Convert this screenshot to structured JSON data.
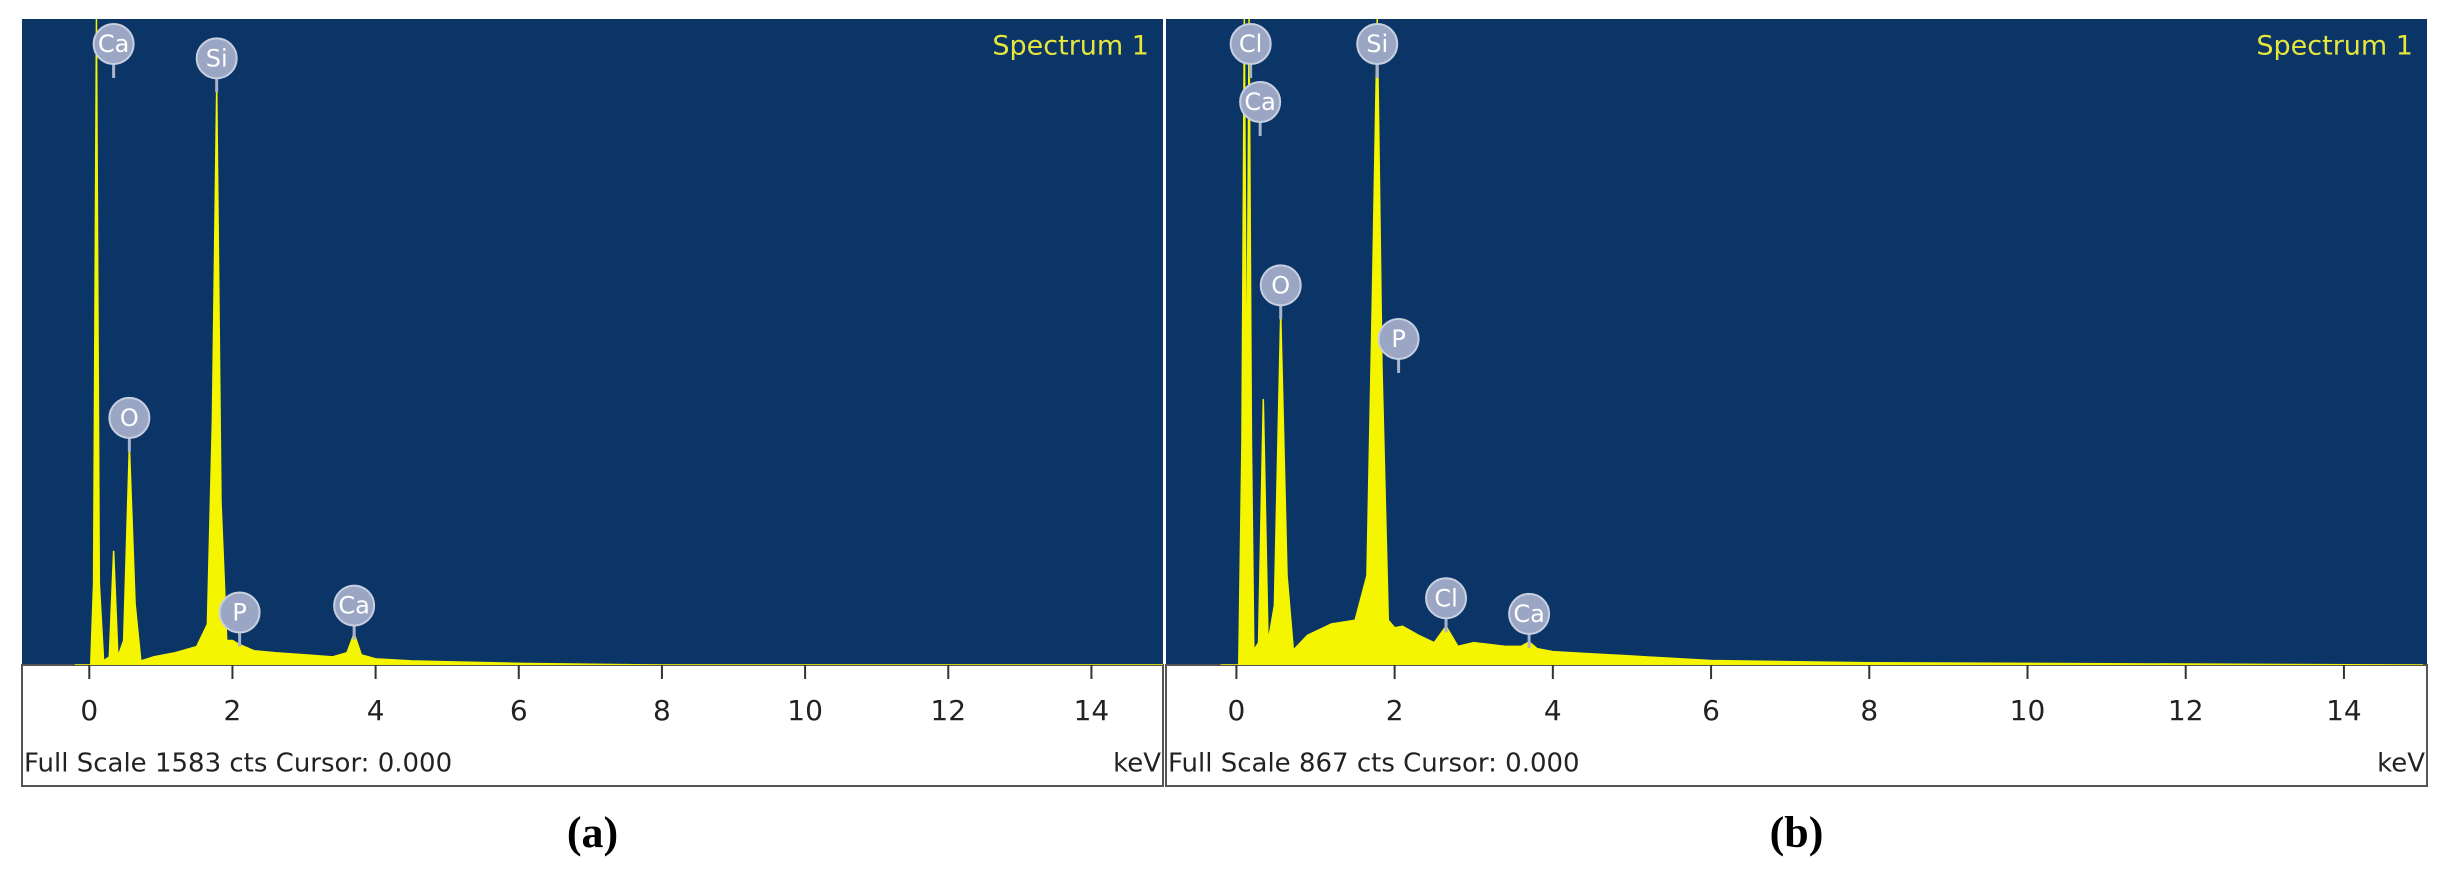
{
  "chart_data": [
    {
      "type": "area",
      "title": "Spectrum 1",
      "caption": "(a)",
      "xlabel": "keV",
      "footer": "Full Scale 1583 cts Cursor: 0.000",
      "color": "#f5f500",
      "background": "#0a3566",
      "x": [
        -0.2,
        0.02,
        0.06,
        0.1,
        0.14,
        0.2,
        0.28,
        0.34,
        0.4,
        0.48,
        0.56,
        0.64,
        0.72,
        0.9,
        1.2,
        1.5,
        1.65,
        1.72,
        1.78,
        1.84,
        1.92,
        2.0,
        2.1,
        2.3,
        2.6,
        3.0,
        3.4,
        3.6,
        3.7,
        3.8,
        4.0,
        4.5,
        5.0,
        6.0,
        8.0,
        15.0
      ],
      "values": [
        0,
        0,
        200,
        1583,
        200,
        10,
        20,
        280,
        20,
        60,
        537,
        150,
        10,
        20,
        30,
        45,
        100,
        600,
        1418,
        400,
        60,
        60,
        50,
        35,
        30,
        25,
        20,
        30,
        77,
        25,
        15,
        10,
        8,
        4,
        0,
        0
      ],
      "xlim": [
        -0.94,
        15.0
      ],
      "ylim": [
        0,
        1583
      ],
      "xticks": [
        0,
        2,
        4,
        6,
        8,
        10,
        12,
        14
      ],
      "annotations": [
        {
          "label": "Ca",
          "x": 0.34
        },
        {
          "label": "Si",
          "x": 1.78
        },
        {
          "label": "O",
          "x": 0.56
        },
        {
          "label": "P",
          "x": 2.1
        },
        {
          "label": "Ca",
          "x": 3.7
        }
      ]
    },
    {
      "type": "area",
      "title": "Spectrum 1",
      "caption": "(b)",
      "xlabel": "keV",
      "footer": "Full Scale 867 cts Cursor: 0.000",
      "color": "#f5f500",
      "background": "#0a3566",
      "x": [
        -0.2,
        0.03,
        0.07,
        0.1,
        0.13,
        0.16,
        0.19,
        0.22,
        0.28,
        0.34,
        0.4,
        0.48,
        0.56,
        0.64,
        0.72,
        0.9,
        1.2,
        1.5,
        1.65,
        1.72,
        1.78,
        1.84,
        1.92,
        2.0,
        2.1,
        2.3,
        2.5,
        2.65,
        2.8,
        3.0,
        3.4,
        3.6,
        3.7,
        3.8,
        4.0,
        4.5,
        5.0,
        6.0,
        8.0,
        15.0
      ],
      "values": [
        0,
        0,
        300,
        867,
        300,
        867,
        300,
        20,
        30,
        357,
        30,
        80,
        472,
        120,
        20,
        40,
        55,
        60,
        120,
        500,
        867,
        400,
        60,
        50,
        52,
        40,
        30,
        52,
        25,
        30,
        25,
        25,
        31,
        22,
        18,
        15,
        12,
        6,
        3,
        0
      ],
      "xlim": [
        -0.89,
        15.05
      ],
      "ylim": [
        0,
        867
      ],
      "xticks": [
        0,
        2,
        4,
        6,
        8,
        10,
        12,
        14
      ],
      "annotations": [
        {
          "label": "Cl",
          "x": 0.18
        },
        {
          "label": "Ca",
          "x": 0.3
        },
        {
          "label": "Si",
          "x": 1.78
        },
        {
          "label": "O",
          "x": 0.56
        },
        {
          "label": "P",
          "x": 2.05
        },
        {
          "label": "Cl",
          "x": 2.65
        },
        {
          "label": "Ca",
          "x": 3.7
        }
      ]
    }
  ]
}
